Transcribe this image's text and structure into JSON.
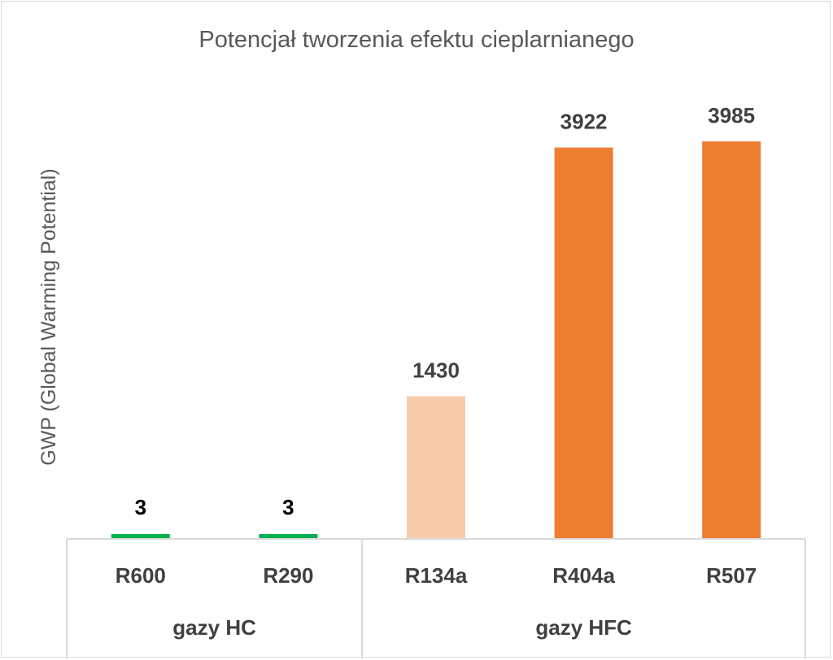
{
  "chart_data": {
    "type": "bar",
    "title": "Potencjał tworzenia efektu cieplarnianego",
    "ylabel": "GWP (Global Warming Potential)",
    "xlabel": "",
    "categories": [
      "R600",
      "R290",
      "R134a",
      "R404a",
      "R507"
    ],
    "groups": [
      {
        "label": "gazy HC",
        "categories": [
          "R600",
          "R290"
        ]
      },
      {
        "label": "gazy HFC",
        "categories": [
          "R134a",
          "R404a",
          "R507"
        ]
      }
    ],
    "values": [
      3,
      3,
      1430,
      3922,
      3985
    ],
    "data_labels": [
      "3",
      "3",
      "1430",
      "3922",
      "3985"
    ],
    "bar_colors": [
      "#00b050",
      "#00b050",
      "#f8cbad",
      "#ed7d31",
      "#ed7d31"
    ],
    "label_colors": [
      "#000000",
      "#000000",
      "#404040",
      "#404040",
      "#404040"
    ],
    "ylim": [
      0,
      4000
    ],
    "grid": false,
    "legend": "none"
  }
}
